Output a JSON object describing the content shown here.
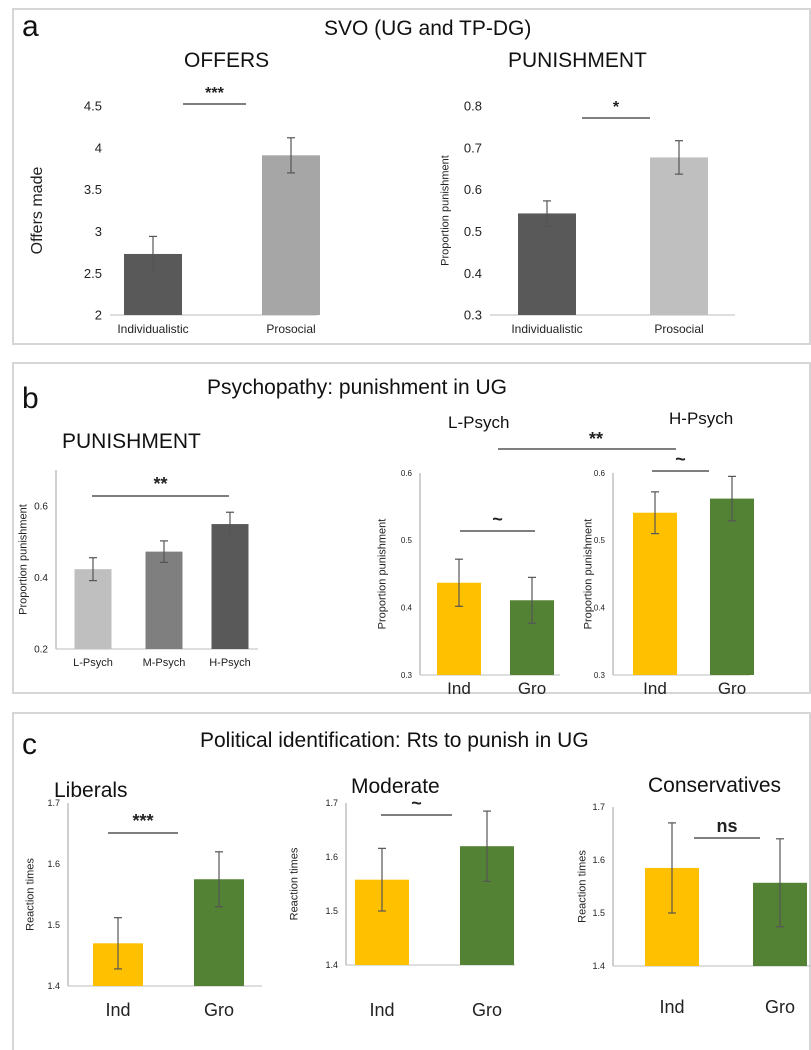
{
  "panels": {
    "a": {
      "label": "a",
      "title": "SVO (UG and TP-DG)"
    },
    "b": {
      "label": "b",
      "title": "Psychopathy: punishment in UG"
    },
    "c": {
      "label": "c",
      "title": "Political identification: Rts to punish in UG"
    }
  },
  "chart_titles": {
    "offers": "OFFERS",
    "punishment_a": "PUNISHMENT",
    "punishment_b": "PUNISHMENT",
    "lpsych": "L-Psych",
    "hpsych": "H-Psych",
    "liberals": "Liberals",
    "moderate": "Moderate",
    "conservatives": "Conservatives"
  },
  "colors": {
    "dark_gray": "#595959",
    "mid_gray": "#7f7f7f",
    "light_gray": "#bfbfbf",
    "medium_gray": "#a6a6a6",
    "yellow": "#ffc000",
    "green": "#548235"
  },
  "chart_data": [
    {
      "id": "offers",
      "type": "bar",
      "categories": [
        "Individualistic",
        "Prosocial"
      ],
      "values": [
        2.73,
        3.91
      ],
      "errors": [
        0.21,
        0.21
      ],
      "colors": [
        "#595959",
        "#a6a6a6"
      ],
      "ylabel": "Offers made",
      "ylim": [
        2,
        4.5
      ],
      "yticks": [
        "2",
        "2.5",
        "3",
        "3.5",
        "4",
        "4.5"
      ],
      "significance": {
        "label": "***",
        "between": [
          0,
          1
        ]
      }
    },
    {
      "id": "punishment_a",
      "type": "bar",
      "categories": [
        "Individualistic",
        "Prosocial"
      ],
      "values": [
        0.543,
        0.677
      ],
      "errors": [
        0.03,
        0.04
      ],
      "colors": [
        "#595959",
        "#bfbfbf"
      ],
      "ylabel": "Proportion punishment",
      "ylim": [
        0.3,
        0.8
      ],
      "yticks": [
        "0.3",
        "0.4",
        "0.5",
        "0.6",
        "0.7",
        "0.8"
      ],
      "significance": {
        "label": "*",
        "between": [
          0,
          1
        ]
      }
    },
    {
      "id": "punishment_b",
      "type": "bar",
      "categories": [
        "L-Psych",
        "M-Psych",
        "H-Psych"
      ],
      "values": [
        0.423,
        0.472,
        0.549
      ],
      "errors": [
        0.032,
        0.03,
        0.033
      ],
      "colors": [
        "#bfbfbf",
        "#7f7f7f",
        "#595959"
      ],
      "ylabel": "Proportion punishment",
      "ylim": [
        0.2,
        0.7
      ],
      "yticks": [
        "0.2",
        "0.4",
        "0.6"
      ],
      "significance": {
        "label": "**",
        "between": [
          0,
          2
        ]
      }
    },
    {
      "id": "lpsych",
      "type": "bar",
      "categories": [
        "Ind",
        "Gro"
      ],
      "values": [
        0.437,
        0.411
      ],
      "errors": [
        0.035,
        0.034
      ],
      "colors": [
        "#ffc000",
        "#548235"
      ],
      "ylabel": "Proportion punishment",
      "ylim": [
        0.3,
        0.6
      ],
      "yticks": [
        "0.3",
        "0.4",
        "0.5",
        "0.6"
      ],
      "significance": {
        "label": "~",
        "between": [
          0,
          1
        ]
      }
    },
    {
      "id": "hpsych",
      "type": "bar",
      "categories": [
        "Ind",
        "Gro"
      ],
      "values": [
        0.541,
        0.562
      ],
      "errors": [
        0.031,
        0.033
      ],
      "colors": [
        "#ffc000",
        "#548235"
      ],
      "ylabel": "Proportion punishment",
      "ylim": [
        0.3,
        0.6
      ],
      "yticks": [
        "0.3",
        "0.4",
        "0.5",
        "0.6"
      ],
      "significance": {
        "label": "~",
        "between": [
          0,
          1
        ]
      }
    },
    {
      "id": "liberals",
      "type": "bar",
      "categories": [
        "Ind",
        "Gro"
      ],
      "values": [
        1.47,
        1.575
      ],
      "errors": [
        0.042,
        0.045
      ],
      "colors": [
        "#ffc000",
        "#548235"
      ],
      "ylabel": "Reaction times",
      "ylim": [
        1.4,
        1.7
      ],
      "yticks": [
        "1.4",
        "1.5",
        "1.6",
        "1.7"
      ],
      "significance": {
        "label": "***",
        "between": [
          0,
          1
        ]
      }
    },
    {
      "id": "moderate",
      "type": "bar",
      "categories": [
        "Ind",
        "Gro"
      ],
      "values": [
        1.558,
        1.62
      ],
      "errors": [
        0.058,
        0.065
      ],
      "colors": [
        "#ffc000",
        "#548235"
      ],
      "ylabel": "Reaction times",
      "ylim": [
        1.4,
        1.7
      ],
      "yticks": [
        "1.4",
        "1.5",
        "1.6",
        "1.7"
      ],
      "significance": {
        "label": "~",
        "between": [
          0,
          0
        ]
      }
    },
    {
      "id": "conservatives",
      "type": "bar",
      "categories": [
        "Ind",
        "Gro"
      ],
      "values": [
        1.585,
        1.557
      ],
      "errors": [
        0.085,
        0.083
      ],
      "colors": [
        "#ffc000",
        "#548235"
      ],
      "ylabel": "Reaction times",
      "ylim": [
        1.4,
        1.7
      ],
      "yticks": [
        "1.4",
        "1.5",
        "1.6",
        "1.7"
      ],
      "significance": {
        "label": "ns",
        "between": [
          0,
          1
        ]
      }
    }
  ],
  "cross_significance": {
    "label": "**"
  }
}
